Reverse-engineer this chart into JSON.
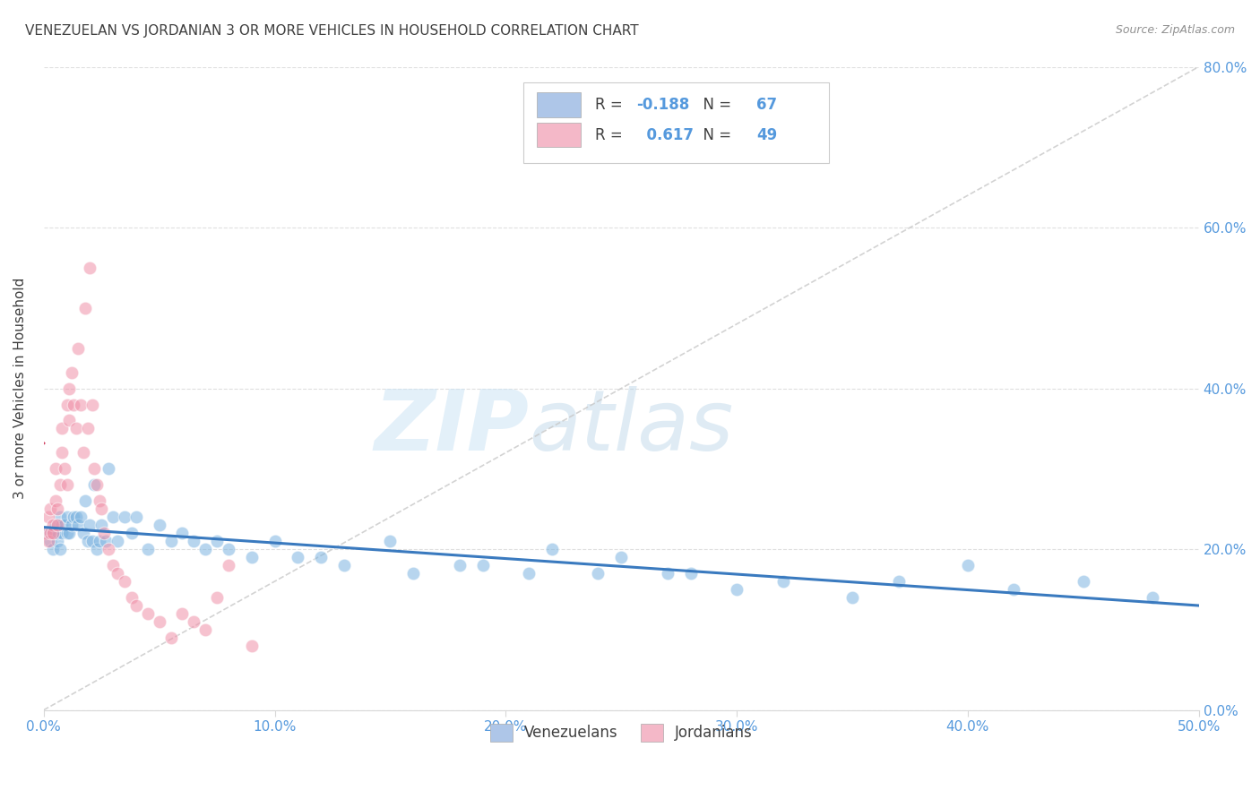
{
  "title": "VENEZUELAN VS JORDANIAN 3 OR MORE VEHICLES IN HOUSEHOLD CORRELATION CHART",
  "source": "Source: ZipAtlas.com",
  "ylabel": "3 or more Vehicles in Household",
  "xlim": [
    0.0,
    50.0
  ],
  "ylim": [
    0.0,
    80.0
  ],
  "yticks": [
    0.0,
    20.0,
    40.0,
    60.0,
    80.0
  ],
  "xticks": [
    0.0,
    10.0,
    20.0,
    30.0,
    40.0,
    50.0
  ],
  "watermark_zip": "ZIP",
  "watermark_atlas": "atlas",
  "legend": {
    "venezuelan": {
      "R": -0.188,
      "N": 67,
      "color": "#aec6e8"
    },
    "jordanian": {
      "R": 0.617,
      "N": 49,
      "color": "#f4b8c8"
    }
  },
  "venezuelan_color": "#7db4e0",
  "jordanian_color": "#f090a8",
  "trendline_venezuelan_color": "#3a7abf",
  "trendline_jordanian_color": "#d04060",
  "diagonal_color": "#c8c8c8",
  "background_color": "#ffffff",
  "grid_color": "#d8d8d8",
  "title_color": "#404040",
  "source_color": "#909090",
  "axis_label_color": "#5599dd",
  "venezuelan_scatter": {
    "x": [
      0.2,
      0.3,
      0.4,
      0.5,
      0.5,
      0.6,
      0.6,
      0.7,
      0.7,
      0.8,
      0.8,
      0.9,
      1.0,
      1.0,
      1.1,
      1.2,
      1.3,
      1.4,
      1.5,
      1.6,
      1.7,
      1.8,
      1.9,
      2.0,
      2.1,
      2.2,
      2.3,
      2.4,
      2.5,
      2.7,
      2.8,
      3.0,
      3.2,
      3.5,
      3.8,
      4.0,
      4.5,
      5.0,
      5.5,
      6.0,
      6.5,
      7.0,
      7.5,
      8.0,
      9.0,
      10.0,
      11.0,
      12.0,
      13.0,
      15.0,
      16.0,
      18.0,
      19.0,
      21.0,
      22.0,
      24.0,
      25.0,
      27.0,
      28.0,
      30.0,
      32.0,
      35.0,
      37.0,
      40.0,
      42.0,
      45.0,
      48.0
    ],
    "y": [
      22,
      21,
      20,
      22,
      23,
      21,
      22,
      20,
      24,
      22,
      23,
      23,
      22,
      24,
      22,
      23,
      24,
      24,
      23,
      24,
      22,
      26,
      21,
      23,
      21,
      28,
      20,
      21,
      23,
      21,
      30,
      24,
      21,
      24,
      22,
      24,
      20,
      23,
      21,
      22,
      21,
      20,
      21,
      20,
      19,
      21,
      19,
      19,
      18,
      21,
      17,
      18,
      18,
      17,
      20,
      17,
      19,
      17,
      17,
      15,
      16,
      14,
      16,
      18,
      15,
      16,
      14
    ]
  },
  "jordanian_scatter": {
    "x": [
      0.1,
      0.2,
      0.2,
      0.3,
      0.3,
      0.4,
      0.4,
      0.5,
      0.5,
      0.6,
      0.6,
      0.7,
      0.8,
      0.8,
      0.9,
      1.0,
      1.0,
      1.1,
      1.1,
      1.2,
      1.3,
      1.4,
      1.5,
      1.6,
      1.7,
      1.8,
      1.9,
      2.0,
      2.1,
      2.2,
      2.3,
      2.4,
      2.5,
      2.6,
      2.8,
      3.0,
      3.2,
      3.5,
      3.8,
      4.0,
      4.5,
      5.0,
      5.5,
      6.0,
      6.5,
      7.0,
      7.5,
      8.0,
      9.0
    ],
    "y": [
      22,
      24,
      21,
      25,
      22,
      23,
      22,
      30,
      26,
      25,
      23,
      28,
      35,
      32,
      30,
      38,
      28,
      40,
      36,
      42,
      38,
      35,
      45,
      38,
      32,
      50,
      35,
      55,
      38,
      30,
      28,
      26,
      25,
      22,
      20,
      18,
      17,
      16,
      14,
      13,
      12,
      11,
      9,
      12,
      11,
      10,
      14,
      18,
      8
    ]
  }
}
